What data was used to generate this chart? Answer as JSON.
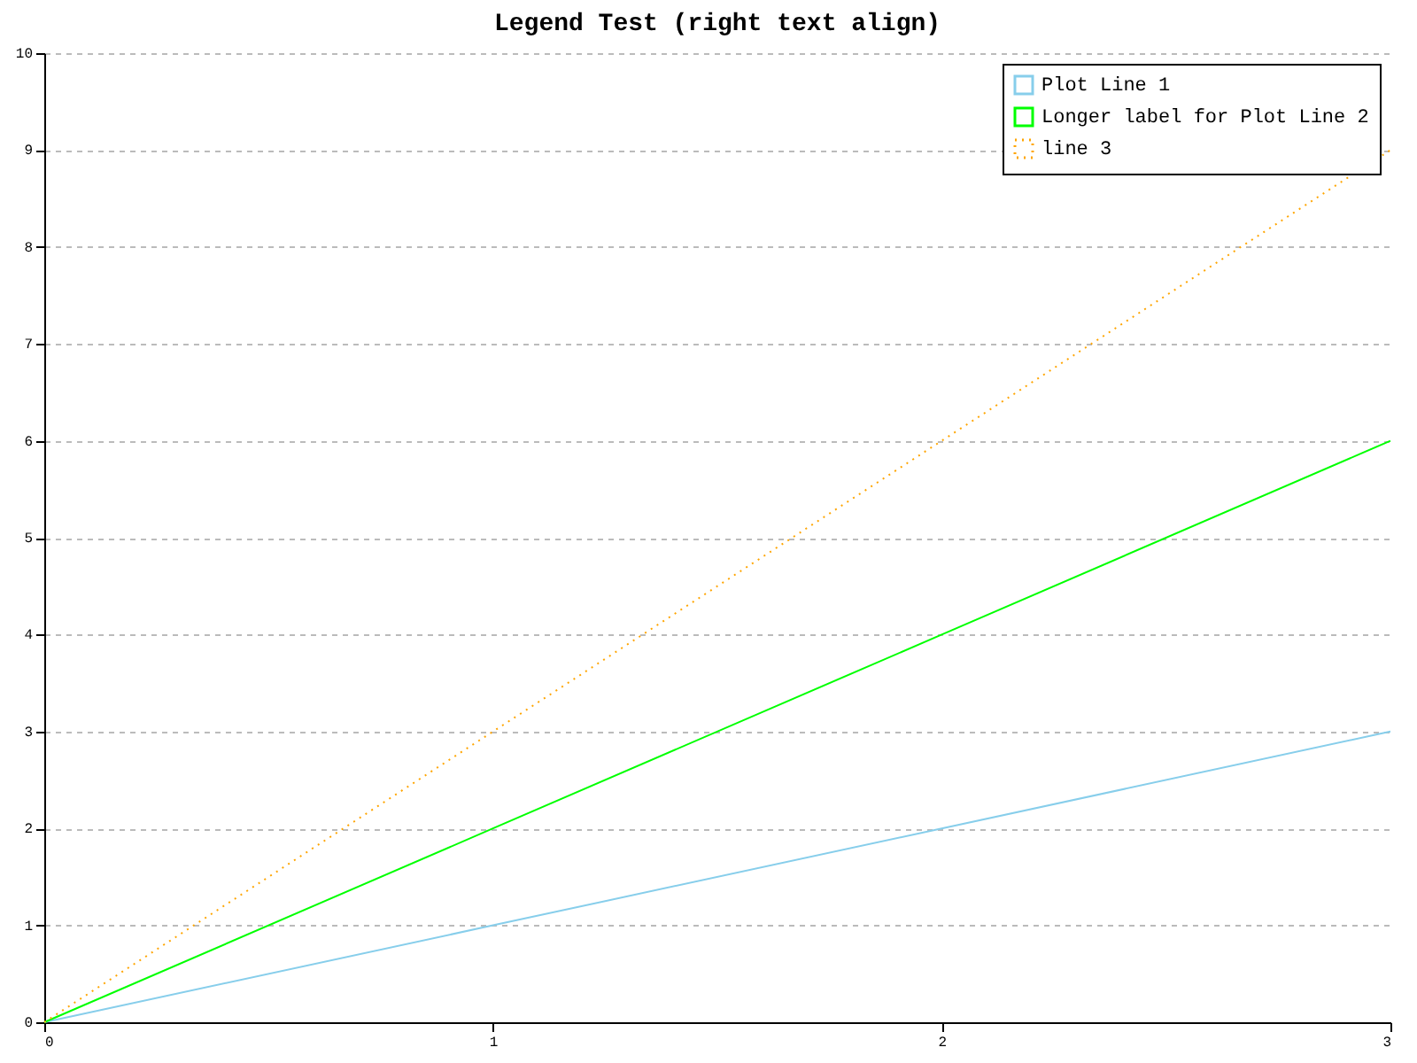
{
  "chart_data": {
    "type": "line",
    "title": "Legend Test (right text align)",
    "x": [
      0,
      1,
      2,
      3
    ],
    "series": [
      {
        "name": "Plot Line 1",
        "color": "#87ceeb",
        "values": [
          0,
          1,
          2,
          3
        ],
        "line_style": "solid"
      },
      {
        "name": "Longer label for Plot Line 2",
        "color": "#00ff00",
        "values": [
          0,
          2,
          4,
          6
        ],
        "line_style": "solid"
      },
      {
        "name": "line 3",
        "color": "#ffa500",
        "values": [
          0,
          3,
          6,
          9
        ],
        "line_style": "dotted"
      }
    ],
    "xlim": [
      0,
      3
    ],
    "xticks": [
      0,
      1,
      2,
      3
    ],
    "ylim": [
      0,
      10
    ],
    "yticks": [
      0,
      1,
      2,
      3,
      4,
      5,
      6,
      7,
      8,
      9,
      10
    ],
    "grid": "y",
    "legend": "top right",
    "marker": "none"
  }
}
